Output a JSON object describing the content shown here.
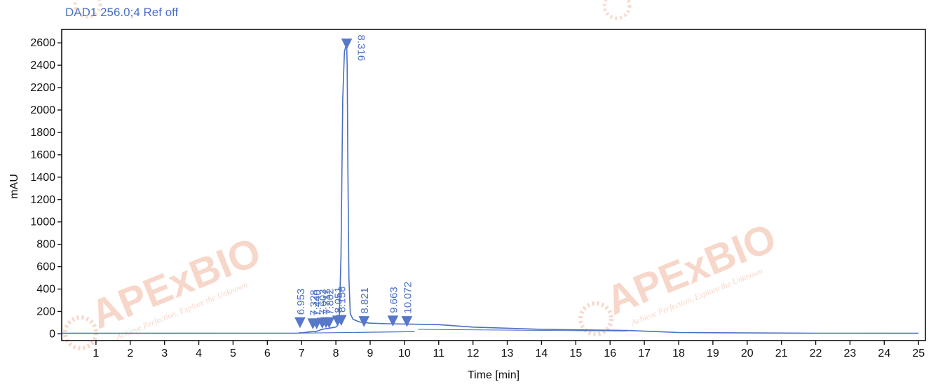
{
  "header": {
    "detector_label": "DAD1 256.0;4 Ref off"
  },
  "watermark": {
    "brand": "APExBIO",
    "tagline": "Achieve Perfection, Explore the Unknown",
    "color": "#f2b8a0"
  },
  "colors": {
    "trace": "#4a6fc4",
    "marker": "#5777c9",
    "axis": "#111111"
  },
  "chart_data": {
    "type": "line",
    "title": "DAD1 256.0;4 Ref off",
    "xlabel": "Time [min]",
    "ylabel": "mAU",
    "xlim": [
      0.0,
      25.2
    ],
    "ylim": [
      -60,
      2720
    ],
    "x_ticks": [
      1,
      2,
      3,
      4,
      5,
      6,
      7,
      8,
      9,
      10,
      11,
      12,
      13,
      14,
      15,
      16,
      17,
      18,
      19,
      20,
      21,
      22,
      23,
      24,
      25
    ],
    "y_ticks": [
      0,
      200,
      400,
      600,
      800,
      1000,
      1200,
      1400,
      1600,
      1800,
      2000,
      2200,
      2400,
      2600
    ],
    "grid": false,
    "series": [
      {
        "x": [
          0.0,
          6.0,
          6.9,
          6.95,
          7.0,
          7.3,
          7.35,
          7.4,
          7.45,
          7.5,
          7.6,
          7.7,
          7.8,
          7.9,
          8.0,
          8.05,
          8.1,
          8.15,
          8.2,
          8.25,
          8.28,
          8.3,
          8.316,
          8.33,
          8.35,
          8.38,
          8.42,
          8.5,
          8.7,
          9.0,
          9.5,
          10.0,
          10.5,
          11.0,
          12.0,
          14.0,
          16.5,
          18.0,
          20.0,
          22.0,
          25.0
        ],
        "y": [
          5,
          6,
          6,
          10,
          8,
          20,
          22,
          18,
          24,
          30,
          40,
          45,
          50,
          55,
          60,
          75,
          150,
          700,
          2100,
          2520,
          2560,
          2570,
          2575,
          2400,
          1500,
          500,
          180,
          130,
          105,
          95,
          90,
          88,
          85,
          82,
          60,
          40,
          30,
          12,
          8,
          6,
          5
        ]
      }
    ],
    "peaks": [
      {
        "rt": "6.953",
        "x": 6.953,
        "y": 10,
        "marker_y": 70
      },
      {
        "rt": "7.328",
        "x": 7.328,
        "y": 20,
        "marker_y": 60
      },
      {
        "rt": "7.440",
        "x": 7.44,
        "y": 24,
        "marker_y": 60
      },
      {
        "rt": "7.603",
        "x": 7.603,
        "y": 40,
        "marker_y": 65
      },
      {
        "rt": "7.711",
        "x": 7.711,
        "y": 45,
        "marker_y": 70
      },
      {
        "rt": "7.802",
        "x": 7.802,
        "y": 50,
        "marker_y": 70
      },
      {
        "rt": "8.051",
        "x": 8.051,
        "y": 75,
        "marker_y": 85
      },
      {
        "rt": "8.156",
        "x": 8.156,
        "y": 700,
        "marker_y": 90
      },
      {
        "rt": "8.316",
        "x": 8.316,
        "y": 2575,
        "marker_y": 2560
      },
      {
        "rt": "8.821",
        "x": 8.821,
        "y": 100,
        "marker_y": 80
      },
      {
        "rt": "9.663",
        "x": 9.663,
        "y": 92,
        "marker_y": 85
      },
      {
        "rt": "10.072",
        "x": 10.072,
        "y": 89,
        "marker_y": 80
      }
    ]
  }
}
